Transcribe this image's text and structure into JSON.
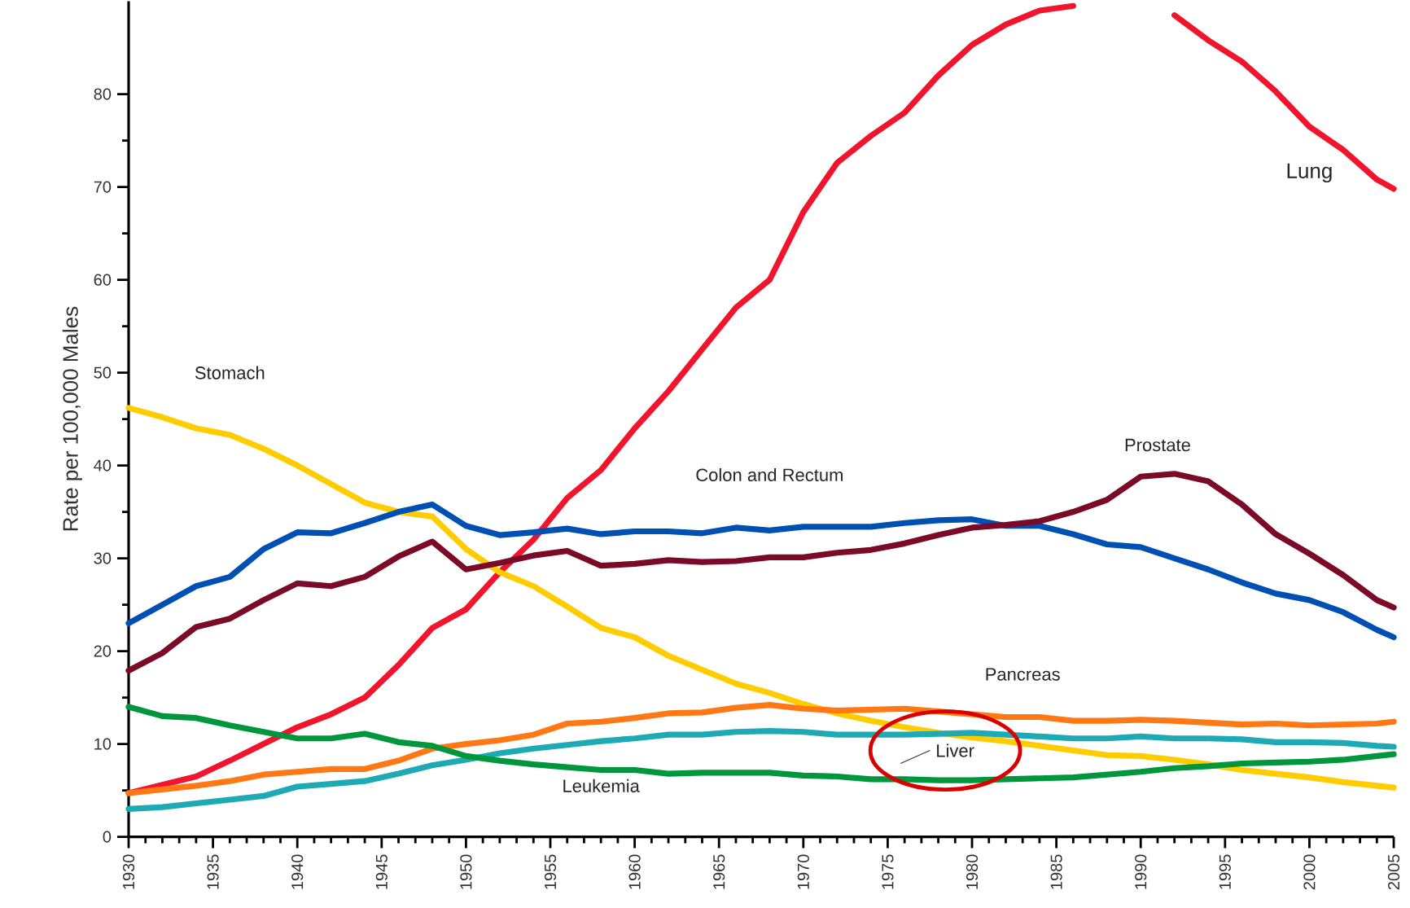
{
  "chart_data": {
    "type": "line",
    "ylabel": "Rate per 100,000 Males",
    "x": [
      1930,
      1932,
      1934,
      1936,
      1938,
      1940,
      1942,
      1944,
      1946,
      1948,
      1950,
      1952,
      1954,
      1956,
      1958,
      1960,
      1962,
      1964,
      1966,
      1968,
      1970,
      1972,
      1974,
      1976,
      1978,
      1980,
      1982,
      1984,
      1986,
      1988,
      1990,
      1992,
      1994,
      1996,
      1998,
      2000,
      2002,
      2004,
      2005
    ],
    "xlim": [
      1930,
      2005
    ],
    "xticks": [
      1930,
      1935,
      1940,
      1945,
      1950,
      1955,
      1960,
      1965,
      1970,
      1975,
      1980,
      1985,
      1990,
      1995,
      2000,
      2005
    ],
    "ylim": [
      0,
      90
    ],
    "yticks": [
      0,
      10,
      20,
      30,
      40,
      50,
      60,
      70,
      80
    ],
    "series": [
      {
        "name": "Lung",
        "color": "#f0142d",
        "values": [
          4.7,
          5.6,
          6.5,
          8.2,
          10,
          11.8,
          13.2,
          15,
          18.5,
          22.5,
          24.5,
          28.5,
          32,
          36.5,
          39.5,
          44,
          48,
          52.5,
          57,
          60,
          67.3,
          72.6,
          75.5,
          78,
          82,
          85.3,
          87.5,
          89,
          89.5,
          null,
          null,
          88.5,
          85.8,
          83.5,
          80.3,
          76.5,
          74,
          70.8,
          69.8
        ]
      },
      {
        "name": "Stomach",
        "color": "#ffcc00",
        "values": [
          46.2,
          45.2,
          44,
          43.3,
          41.8,
          40,
          38,
          36,
          35,
          34.5,
          31,
          28.5,
          27,
          24.8,
          22.5,
          21.5,
          19.5,
          18,
          16.5,
          15.5,
          14.3,
          13.3,
          12.5,
          11.8,
          11.2,
          10.7,
          10.3,
          9.8,
          9.3,
          8.8,
          8.7,
          8.3,
          7.8,
          7.2,
          6.8,
          6.4,
          5.9,
          5.5,
          5.3
        ]
      },
      {
        "name": "Colon and Rectum",
        "color": "#0050b4",
        "values": [
          23,
          25,
          27,
          28,
          31,
          32.8,
          32.7,
          33.8,
          35,
          35.8,
          33.5,
          32.5,
          32.8,
          33.2,
          32.6,
          32.9,
          32.9,
          32.7,
          33.3,
          33,
          33.4,
          33.4,
          33.4,
          33.8,
          34.1,
          34.2,
          33.5,
          33.5,
          32.6,
          31.5,
          31.2,
          30,
          28.8,
          27.4,
          26.2,
          25.5,
          24.2,
          22.3,
          21.5
        ]
      },
      {
        "name": "Prostate",
        "color": "#7a0a28",
        "values": [
          17.9,
          19.8,
          22.6,
          23.5,
          25.5,
          27.3,
          27,
          28,
          30.2,
          31.8,
          28.8,
          29.5,
          30.3,
          30.8,
          29.2,
          29.4,
          29.8,
          29.6,
          29.7,
          30.1,
          30.1,
          30.6,
          30.9,
          31.6,
          32.5,
          33.3,
          33.6,
          34,
          35,
          36.3,
          38.8,
          39.1,
          38.3,
          35.8,
          32.6,
          30.5,
          28.2,
          25.5,
          24.7
        ]
      },
      {
        "name": "Pancreas",
        "color": "#ff7814",
        "values": [
          4.7,
          5.1,
          5.5,
          6,
          6.7,
          7,
          7.3,
          7.3,
          8.2,
          9.5,
          10,
          10.4,
          11,
          12.2,
          12.4,
          12.8,
          13.3,
          13.4,
          13.9,
          14.2,
          13.8,
          13.6,
          13.7,
          13.8,
          13.5,
          13.2,
          12.9,
          12.9,
          12.5,
          12.5,
          12.6,
          12.5,
          12.3,
          12.1,
          12.2,
          12,
          12.1,
          12.2,
          12.4
        ]
      },
      {
        "name": "Liver",
        "color": "#1eaab4",
        "values": [
          3,
          3.2,
          3.6,
          4,
          4.4,
          5.4,
          5.7,
          6,
          6.8,
          7.7,
          8.3,
          9,
          9.5,
          9.9,
          10.3,
          10.6,
          11,
          11,
          11.3,
          11.4,
          11.3,
          11,
          11,
          11,
          11.1,
          11.2,
          11,
          10.8,
          10.6,
          10.6,
          10.8,
          10.6,
          10.6,
          10.5,
          10.2,
          10.2,
          10.1,
          9.8,
          9.7
        ]
      },
      {
        "name": "Leukemia",
        "color": "#00963c",
        "values": [
          14,
          13,
          12.8,
          12,
          11.3,
          10.6,
          10.6,
          11.1,
          10.2,
          9.8,
          8.7,
          8.2,
          7.8,
          7.5,
          7.2,
          7.2,
          6.8,
          6.9,
          6.9,
          6.9,
          6.6,
          6.5,
          6.2,
          6.2,
          6.1,
          6.1,
          6.2,
          6.3,
          6.4,
          6.7,
          7,
          7.4,
          7.6,
          7.9,
          8,
          8.1,
          8.3,
          8.7,
          8.9
        ]
      }
    ]
  }
}
